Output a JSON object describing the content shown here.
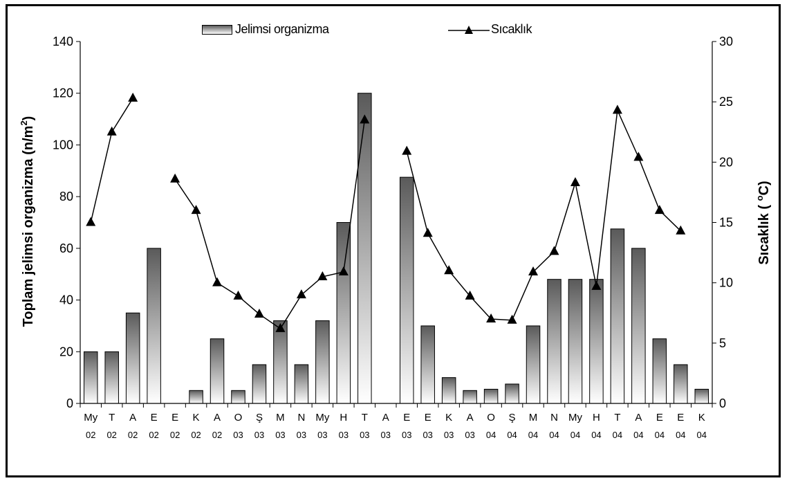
{
  "chart_data": {
    "type": "bar",
    "title": "",
    "ylabel": "Toplam jelimsi organizma (n/m ²)",
    "ylabel_parts": [
      "Toplam jelimsi organizma (n/m",
      "2",
      ")"
    ],
    "y2label_parts": [
      "Sıcaklık ( ",
      "o",
      "C)"
    ],
    "ylim": [
      0,
      140
    ],
    "y2lim": [
      0,
      30
    ],
    "yticks": [
      "0",
      "20",
      "40",
      "60",
      "80",
      "100",
      "120",
      "140"
    ],
    "y2ticks": [
      "0",
      "5",
      "10",
      "15",
      "20",
      "25",
      "30"
    ],
    "categories_top": [
      "My",
      "T",
      "A",
      "E",
      "E",
      "K",
      "A",
      "O",
      "Ş",
      "M",
      "N",
      "My",
      "H",
      "T",
      "A",
      "E",
      "E",
      "K",
      "A",
      "O",
      "Ş",
      "M",
      "N",
      "My",
      "H",
      "T",
      "A",
      "E",
      "E",
      "K"
    ],
    "categories_bottom": [
      "02",
      "02",
      "02",
      "02",
      "02",
      "02",
      "02",
      "03",
      "03",
      "03",
      "03",
      "03",
      "03",
      "03",
      "03",
      "03",
      "03",
      "03",
      "03",
      "04",
      "04",
      "04",
      "04",
      "04",
      "04",
      "04",
      "04",
      "04",
      "04",
      "04"
    ],
    "legend_position": "top",
    "series": [
      {
        "name": "Jelimsi organizma",
        "type": "bar",
        "axis": "left",
        "values": [
          20,
          20,
          35,
          60,
          0,
          5,
          25,
          5,
          15,
          32,
          15,
          32,
          70,
          120,
          0,
          87.5,
          30,
          10,
          5,
          5.5,
          7.5,
          30,
          48,
          48,
          48,
          67.5,
          60,
          25,
          15,
          5.5
        ]
      },
      {
        "name": "Sıcaklık",
        "type": "line",
        "axis": "right",
        "values": [
          15,
          22.5,
          25.3,
          null,
          18.6,
          16,
          10,
          8.9,
          7.4,
          6.2,
          9,
          10.5,
          10.9,
          23.5,
          null,
          20.9,
          14.1,
          11,
          8.9,
          7,
          6.9,
          10.9,
          12.6,
          18.3,
          9.7,
          24.3,
          20.4,
          16,
          14.3,
          null
        ]
      }
    ]
  }
}
